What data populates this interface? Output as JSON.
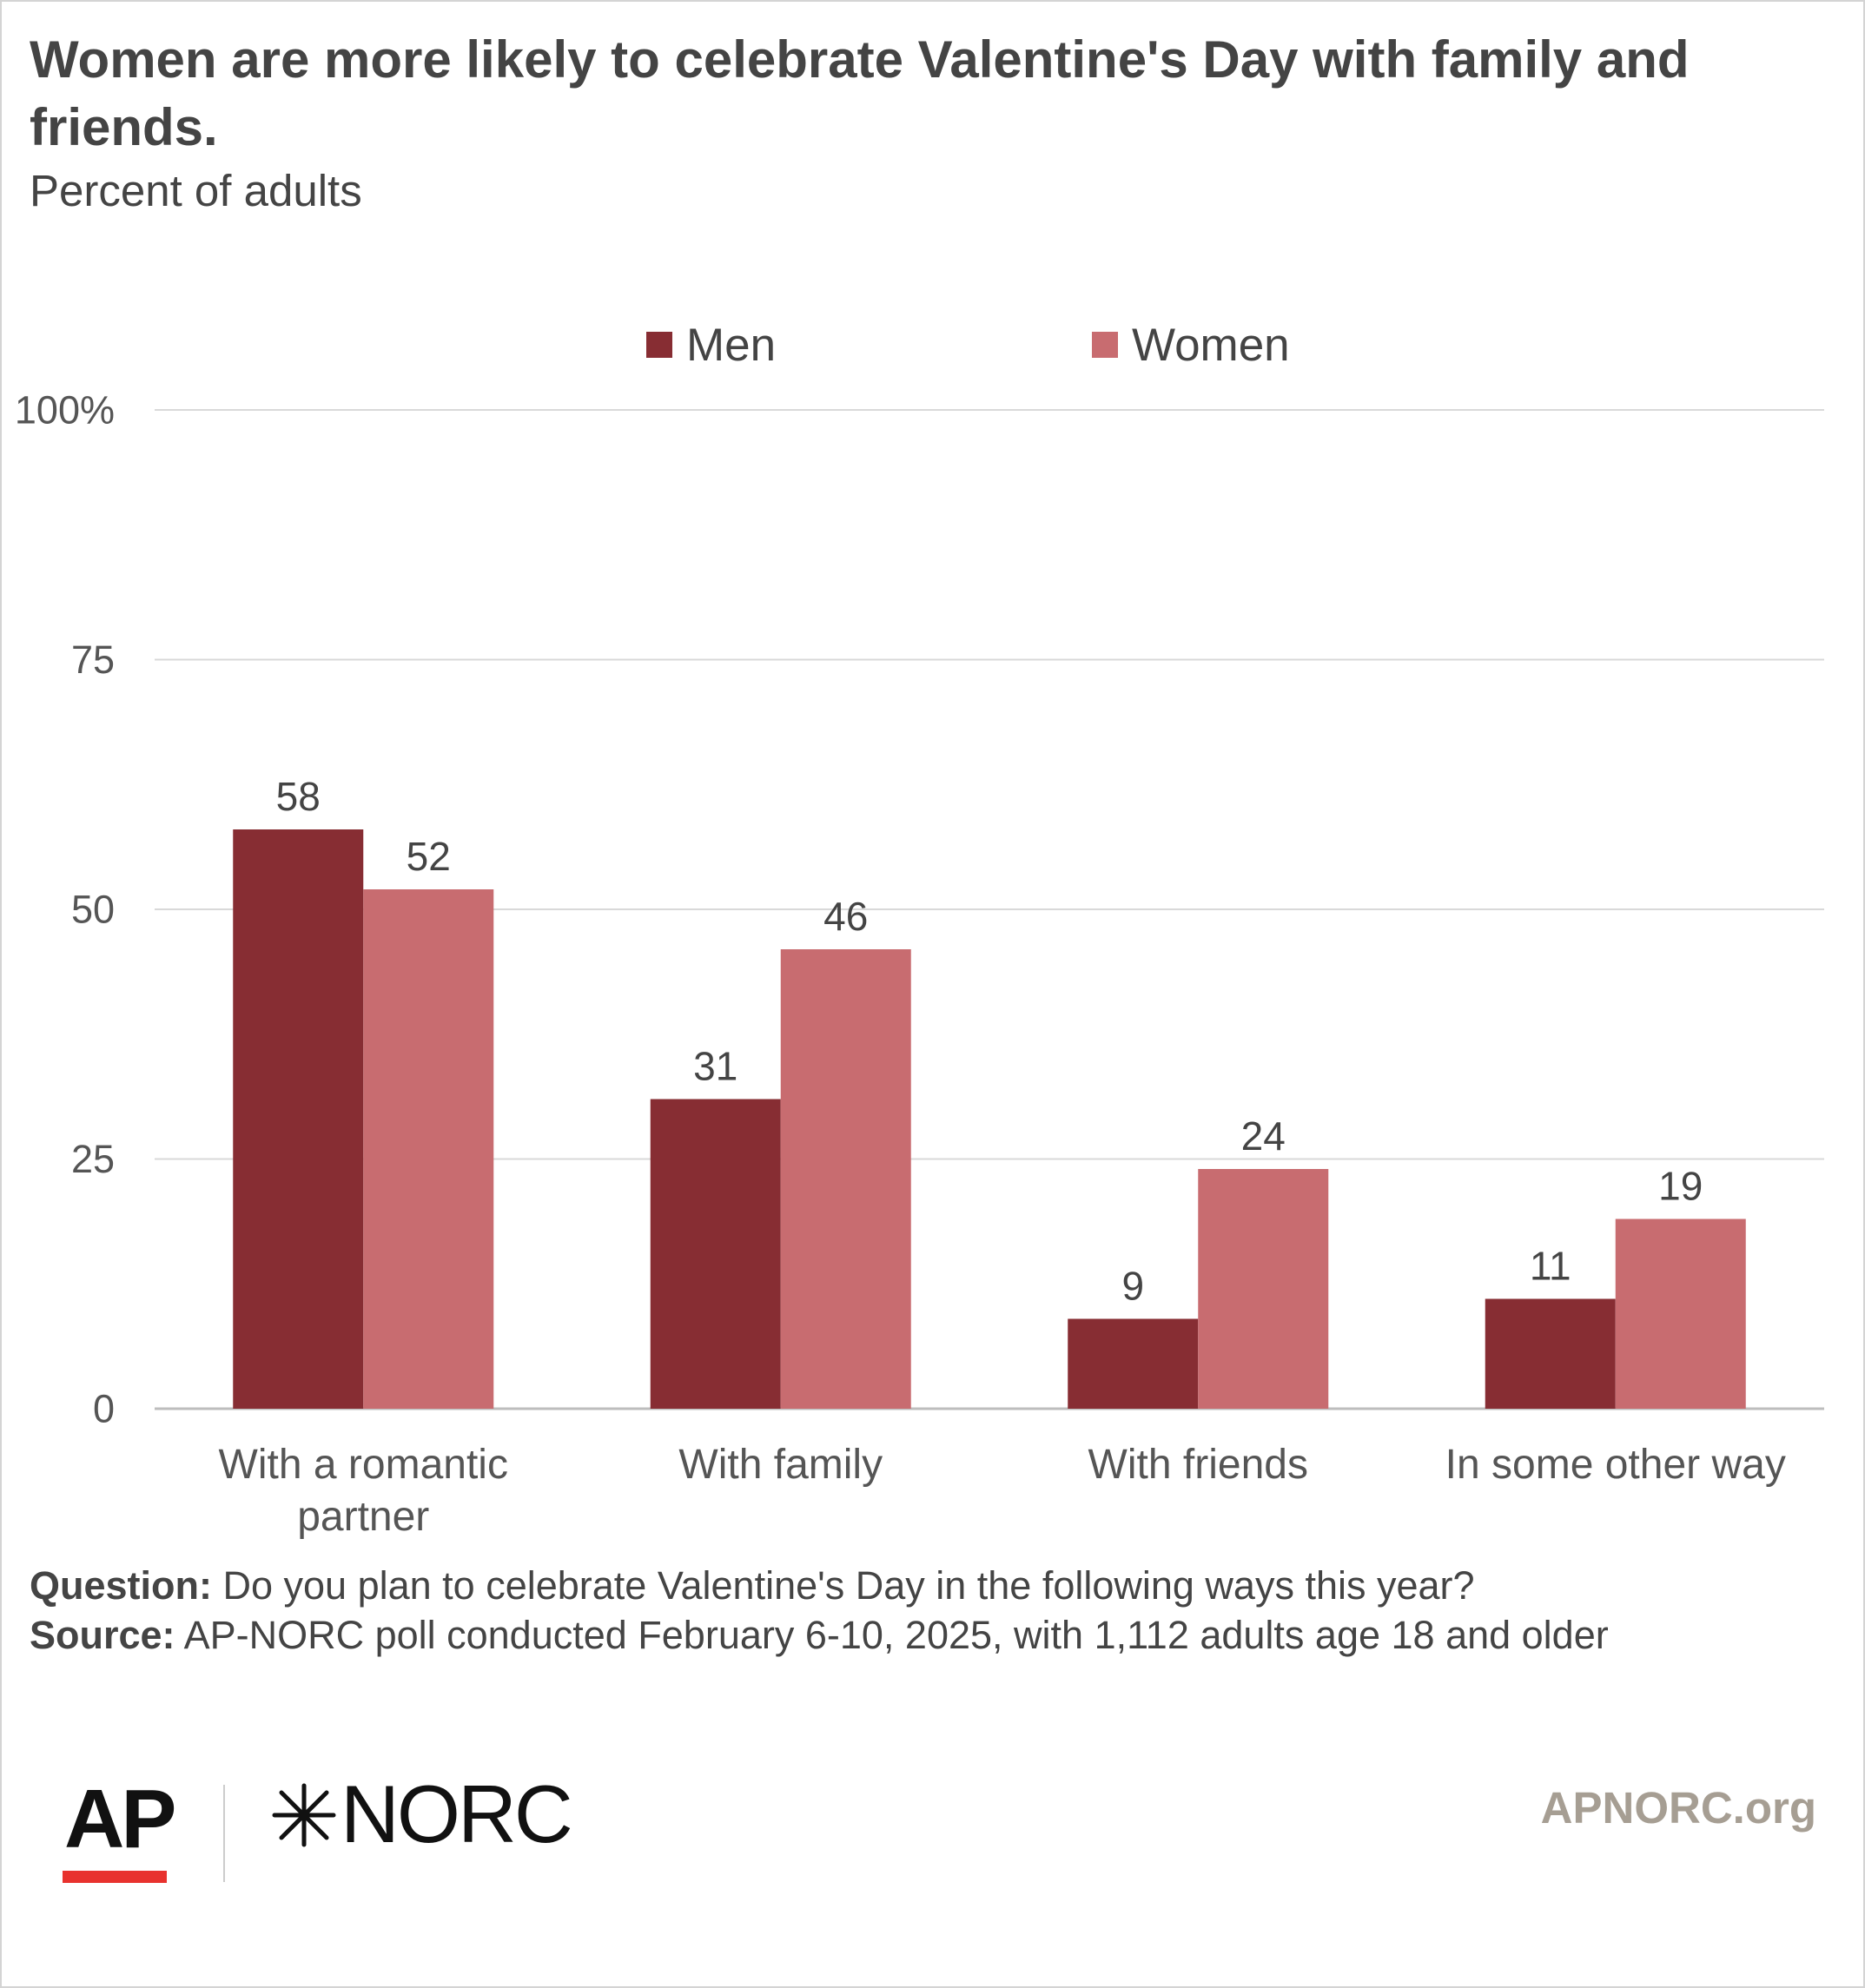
{
  "chart_data": {
    "type": "bar",
    "title": "Women are more likely to celebrate Valentine's Day with family and friends.",
    "subtitle": "Percent of adults",
    "categories": [
      "With a romantic partner",
      "With family",
      "With friends",
      "In some other way"
    ],
    "category_lines": [
      [
        "With a romantic",
        "partner"
      ],
      [
        "With family"
      ],
      [
        "With friends"
      ],
      [
        "In some other way"
      ]
    ],
    "series": [
      {
        "name": "Men",
        "color": "#872d33",
        "values": [
          58,
          31,
          9,
          11
        ]
      },
      {
        "name": "Women",
        "color": "#c86c70",
        "values": [
          52,
          46,
          24,
          19
        ]
      }
    ],
    "ylim": [
      0,
      100
    ],
    "yticks": [
      0,
      25,
      50,
      75,
      100
    ],
    "ytick_labels": [
      "0",
      "25",
      "50",
      "75",
      "100%"
    ],
    "grid": true,
    "legend_position": "top-center",
    "xlabel": "",
    "ylabel": ""
  },
  "footer": {
    "question_label": "Question:",
    "question_text": " Do you plan to celebrate Valentine's Day in the following ways this year?",
    "source_label": "Source:",
    "source_text": " AP-NORC poll conducted February 6-10, 2025, with 1,112 adults age 18 and older",
    "logo_ap": "AP",
    "logo_norc": "NORC",
    "site": "APNORC.org"
  }
}
